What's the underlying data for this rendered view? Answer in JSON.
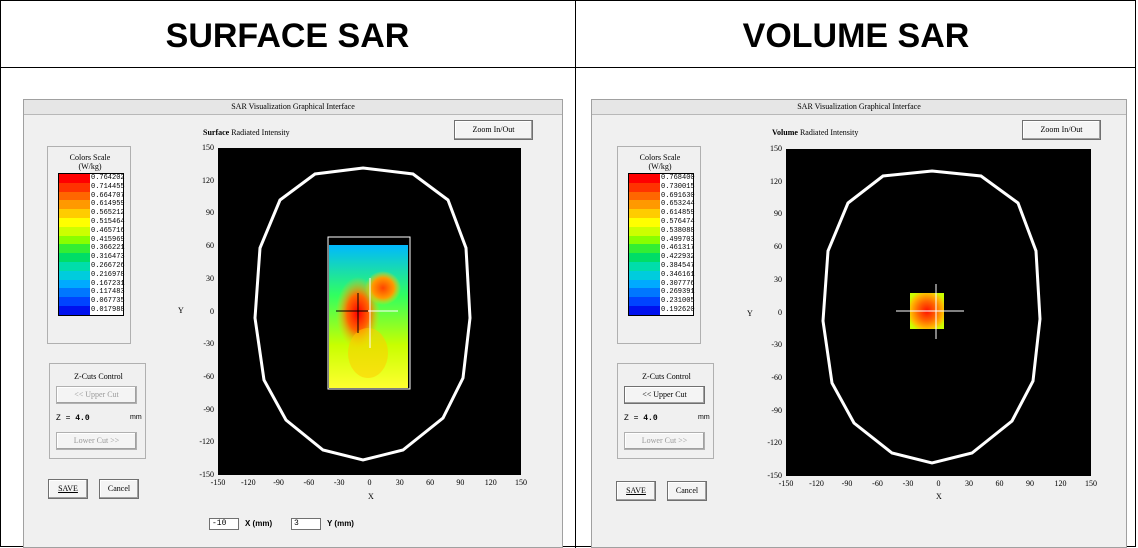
{
  "headers": {
    "left": "SURFACE SAR",
    "right": "VOLUME SAR"
  },
  "panels": [
    {
      "window_title": "SAR Visualization Graphical Interface",
      "zoom_label": "Zoom In/Out",
      "plot_title_bold": "Surface",
      "plot_title_rest": "Radiated Intensity",
      "colors_scale_title": "Colors Scale",
      "colors_scale_unit": "(W/kg)",
      "scale_values": [
        "0.764202",
        "0.714455",
        "0.664707",
        "0.614959",
        "0.565212",
        "0.515464",
        "0.465716",
        "0.415969",
        "0.366221",
        "0.316473",
        "0.266726",
        "0.216978",
        "0.167231",
        "0.117483",
        "0.067735",
        "0.017988"
      ],
      "zcuts_title": "Z-Cuts Control",
      "upper_cut_label": "<< Upper Cut",
      "upper_cut_enabled": false,
      "lower_cut_label": "Lower Cut >>",
      "lower_cut_enabled": false,
      "z_label": "Z =",
      "z_value": "4.0",
      "z_unit": "mm",
      "save_label": "SAVE",
      "cancel_label": "Cancel",
      "x_axis_label": "X",
      "y_axis_label": "Y",
      "x_ticks": [
        "-150",
        "-120",
        "-90",
        "-60",
        "-30",
        "0",
        "30",
        "60",
        "90",
        "120",
        "150"
      ],
      "y_ticks": [
        "150",
        "120",
        "90",
        "60",
        "30",
        "0",
        "-30",
        "-60",
        "-90",
        "-120",
        "-150"
      ],
      "coord_x_value": "-10",
      "coord_x_label": "X (mm)",
      "coord_y_value": "3",
      "coord_y_label": "Y (mm)"
    },
    {
      "window_title": "SAR Visualization Graphical Interface",
      "zoom_label": "Zoom In/Out",
      "plot_title_bold": "Volume",
      "plot_title_rest": "Radiated Intensity",
      "colors_scale_title": "Colors Scale",
      "colors_scale_unit": "(W/kg)",
      "scale_values": [
        "0.768400",
        "0.730015",
        "0.691630",
        "0.653244",
        "0.614859",
        "0.576474",
        "0.538088",
        "0.499703",
        "0.461317",
        "0.422932",
        "0.384547",
        "0.346161",
        "0.307776",
        "0.269391",
        "0.231005",
        "0.192620"
      ],
      "zcuts_title": "Z-Cuts Control",
      "upper_cut_label": "<< Upper Cut",
      "upper_cut_enabled": true,
      "lower_cut_label": "Lower Cut >>",
      "lower_cut_enabled": false,
      "z_label": "Z =",
      "z_value": "4.0",
      "z_unit": "mm",
      "save_label": "SAVE",
      "cancel_label": "Cancel",
      "x_axis_label": "X",
      "y_axis_label": "Y",
      "x_ticks": [
        "-150",
        "-120",
        "-90",
        "-60",
        "-30",
        "0",
        "30",
        "60",
        "90",
        "120",
        "150"
      ],
      "y_ticks": [
        "150",
        "120",
        "90",
        "60",
        "30",
        "0",
        "-30",
        "-60",
        "-90",
        "-120",
        "-150"
      ]
    }
  ],
  "scale_colors": [
    "#ff0000",
    "#ff3300",
    "#ff6600",
    "#ff9900",
    "#ffcc00",
    "#ffff00",
    "#ccff00",
    "#88ff00",
    "#33ee33",
    "#00dd66",
    "#00ddaa",
    "#00ccdd",
    "#00aaff",
    "#0077ff",
    "#0044ff",
    "#0011ee"
  ],
  "colors": {
    "outline": "#ffffff",
    "plot_bg": "#000000",
    "hotspot": "#ff0000"
  }
}
